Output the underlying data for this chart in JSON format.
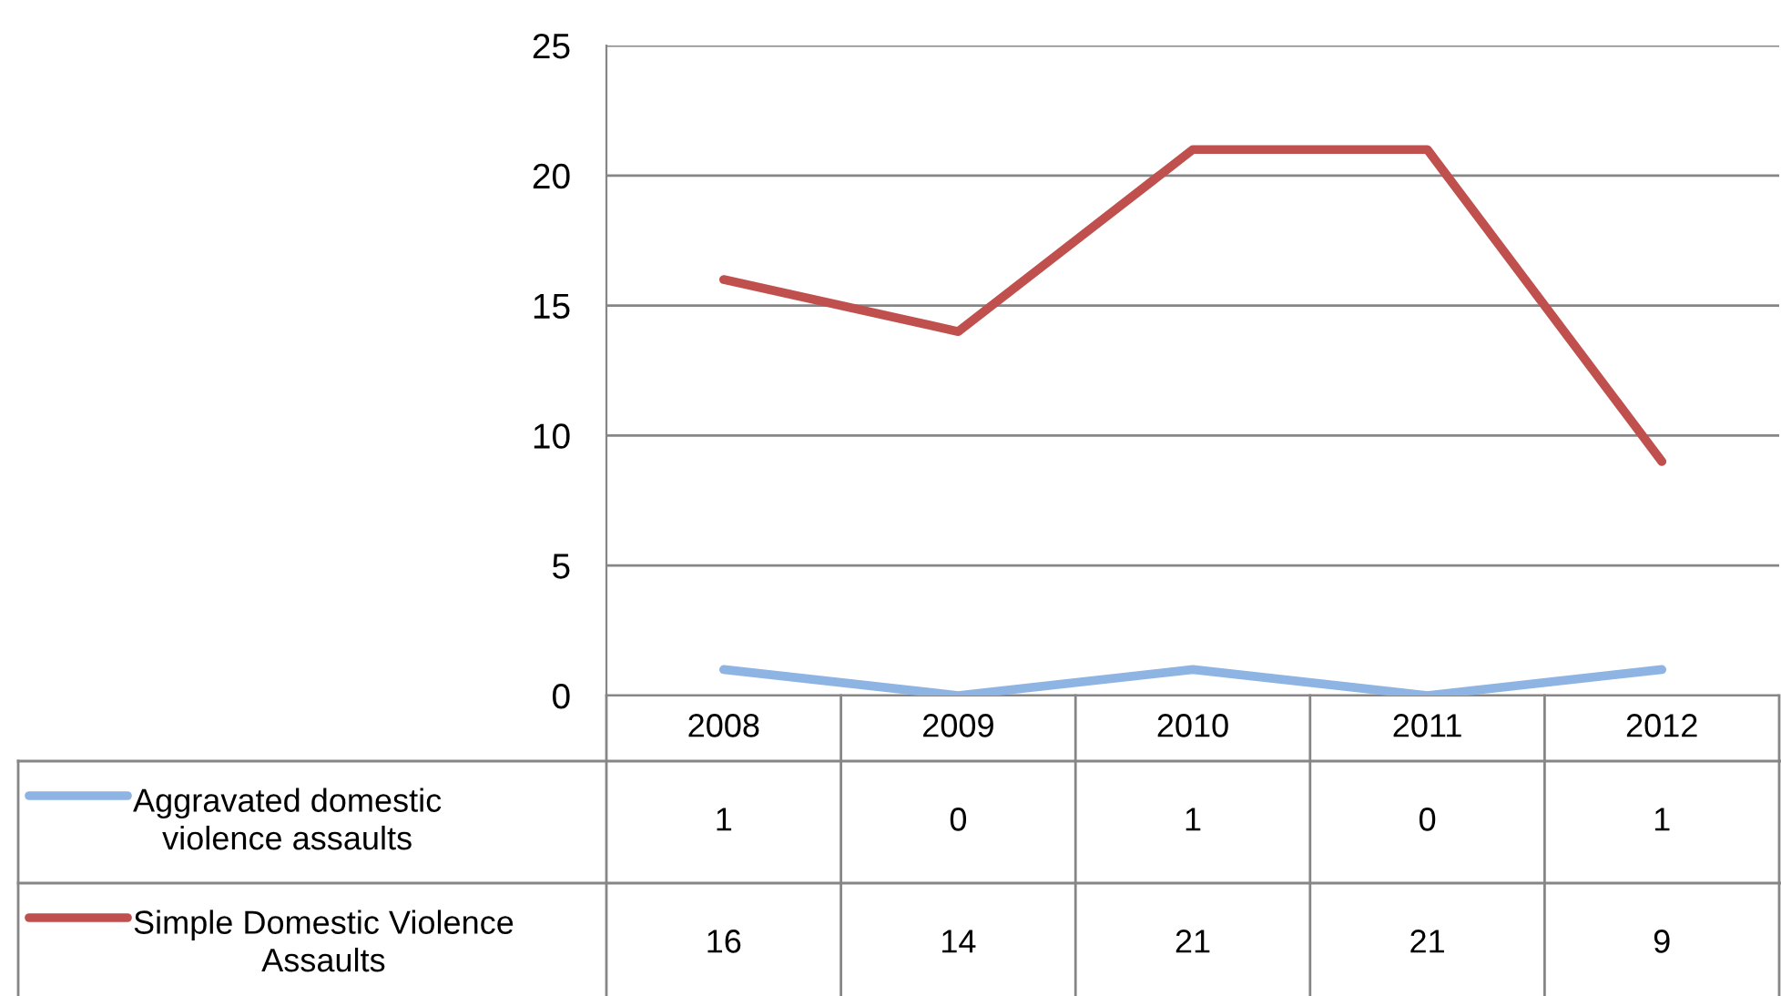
{
  "chart_data": {
    "type": "line",
    "categories": [
      "2008",
      "2009",
      "2010",
      "2011",
      "2012"
    ],
    "series": [
      {
        "name": "Aggravated domestic violence assaults",
        "color": "#8eb4e3",
        "values": [
          1,
          0,
          1,
          0,
          1
        ]
      },
      {
        "name": "Simple Domestic Violence Assaults",
        "color": "#c0504d",
        "values": [
          16,
          14,
          21,
          21,
          9
        ]
      }
    ],
    "ylim": [
      0,
      25
    ],
    "yticks": [
      0,
      5,
      10,
      15,
      20,
      25
    ],
    "grid": "y",
    "legend": "bottom left",
    "data_labels": true,
    "marker": "none",
    "line_style": "solid"
  }
}
